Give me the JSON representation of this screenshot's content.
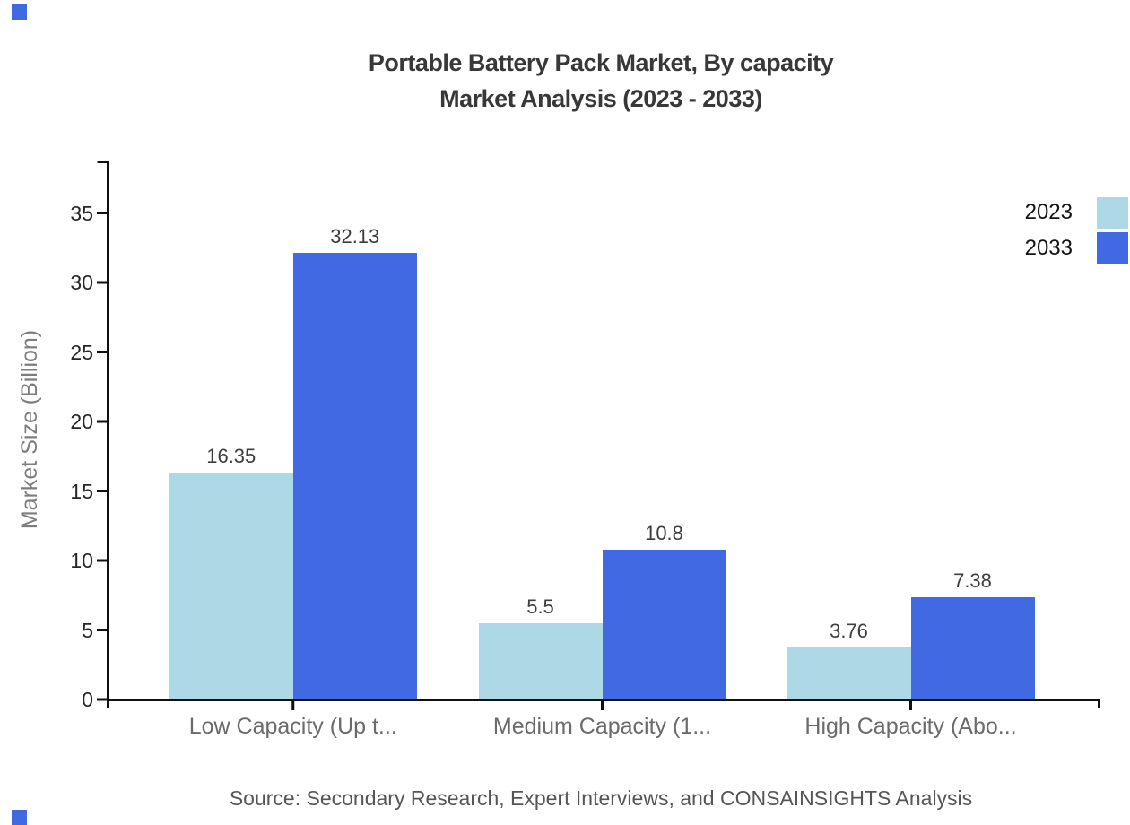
{
  "page": {
    "background": "#ffffff"
  },
  "brand_mark_color": "#4169E1",
  "chart_data": {
    "type": "bar",
    "title_line1": "Portable Battery Pack Market, By capacity",
    "title_line2": "Market Analysis (2023 - 2033)",
    "categories": [
      "Low Capacity (Up t...",
      "Medium Capacity (1...",
      "High Capacity (Abo..."
    ],
    "series": [
      {
        "name": "2023",
        "color": "#ADD8E6",
        "values": [
          16.35,
          5.5,
          3.76
        ]
      },
      {
        "name": "2033",
        "color": "#4169E1",
        "values": [
          32.13,
          10.8,
          7.38
        ]
      }
    ],
    "value_labels": {
      "s2023": [
        "16.35",
        "5.5",
        "3.76"
      ],
      "s2033": [
        "32.13",
        "10.8",
        "7.38"
      ]
    },
    "xlabel": "",
    "ylabel": "Market Size (Billion)",
    "yticks": [
      0,
      5,
      10,
      15,
      20,
      25,
      30,
      35
    ],
    "ylim": [
      0,
      38.7
    ],
    "grid": false,
    "legend_position": "top-right",
    "axis_color": "#111111"
  },
  "footer": {
    "source": "Source: Secondary Research, Expert Interviews, and CONSAINSIGHTS Analysis"
  }
}
